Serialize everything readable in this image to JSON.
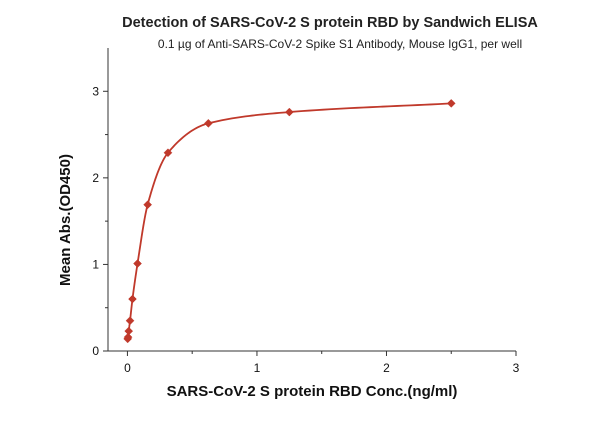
{
  "chart_data": {
    "type": "scatter",
    "title": "Detection of SARS-CoV-2 S protein RBD by Sandwich ELISA",
    "subtitle": "0.1 µg of Anti-SARS-CoV-2 Spike S1 Antibody, Mouse IgG1,  per well",
    "xlabel": "SARS-CoV-2 S protein RBD Conc.(ng/ml)",
    "ylabel": "Mean Abs.(OD450)",
    "xlim": [
      -0.15,
      3
    ],
    "ylim": [
      0,
      3.5
    ],
    "xticks": [
      "0",
      "1",
      "2",
      "3"
    ],
    "yticks": [
      "0",
      "1",
      "2",
      "3"
    ],
    "grid": false,
    "legend": "none",
    "colors": {
      "series": "#c0392b",
      "axis": "#333333"
    },
    "series": [
      {
        "points_x": [
          0.002,
          0.005,
          0.01,
          0.02,
          0.039,
          0.078,
          0.156,
          0.313,
          0.625,
          1.25,
          2.5
        ],
        "points_y": [
          0.14,
          0.16,
          0.23,
          0.35,
          0.6,
          1.01,
          1.69,
          2.29,
          2.63,
          2.76,
          2.86
        ],
        "fit_curve": true
      }
    ]
  }
}
